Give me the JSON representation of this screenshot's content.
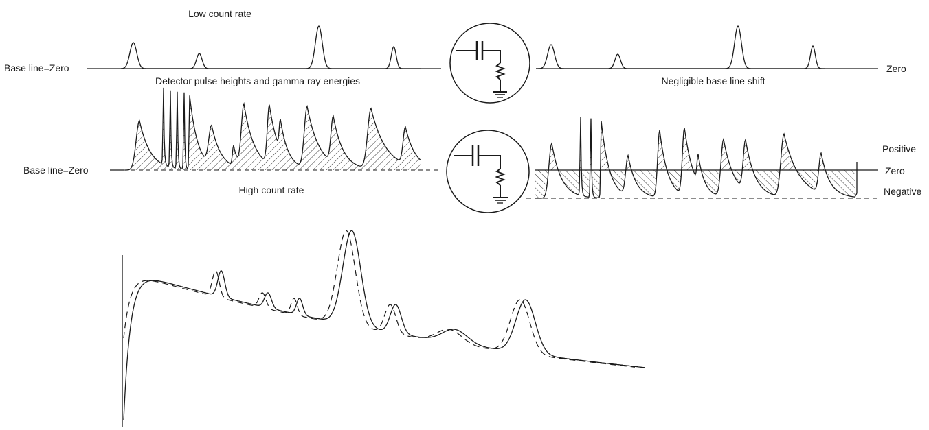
{
  "labels": {
    "low_count_rate": "Low count rate",
    "baseline_zero_top": "Base line=Zero",
    "detector_caption": "Detector pulse heights and gamma ray energies",
    "zero_top_right": "Zero",
    "negligible_shift": "Negligible base line shift",
    "baseline_zero_mid": "Base line=Zero",
    "high_count_rate": "High count rate",
    "positive": "Positive",
    "zero_mid_right": "Zero",
    "negative": "Negative"
  },
  "colors": {
    "ink": "#1a1a1a",
    "background": "#ffffff"
  }
}
